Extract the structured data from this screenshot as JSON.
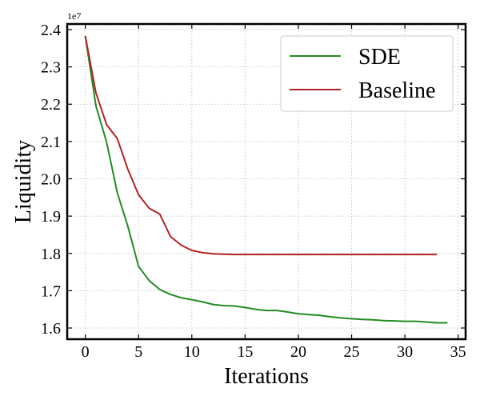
{
  "chart_data": {
    "type": "line",
    "title": "",
    "xlabel": "Iterations",
    "ylabel": "Liquidity",
    "y_offset_label": "1e7",
    "xlim": [
      -1.7,
      35.7
    ],
    "ylim": [
      1.57,
      2.415
    ],
    "x_ticks": [
      0,
      5,
      10,
      15,
      20,
      25,
      30,
      35
    ],
    "y_ticks": [
      1.6,
      1.7,
      1.8,
      1.9,
      2.0,
      2.1,
      2.2,
      2.3,
      2.4
    ],
    "x_tick_labels": [
      "0",
      "5",
      "10",
      "15",
      "20",
      "25",
      "30",
      "35"
    ],
    "y_tick_labels": [
      "1.6",
      "1.7",
      "1.8",
      "1.9",
      "2.0",
      "2.1",
      "2.2",
      "2.3",
      "2.4"
    ],
    "grid": true,
    "legend_position": "top-right",
    "series": [
      {
        "name": "SDE",
        "color": "#228b22",
        "x": [
          0,
          1,
          2,
          3,
          4,
          5,
          6,
          7,
          8,
          9,
          10,
          11,
          12,
          13,
          14,
          15,
          16,
          17,
          18,
          19,
          20,
          21,
          22,
          23,
          24,
          25,
          26,
          27,
          28,
          29,
          30,
          31,
          32,
          33,
          34
        ],
        "y": [
          2.383,
          2.195,
          2.098,
          1.963,
          1.872,
          1.765,
          1.727,
          1.703,
          1.69,
          1.681,
          1.676,
          1.67,
          1.663,
          1.66,
          1.659,
          1.655,
          1.65,
          1.647,
          1.647,
          1.643,
          1.638,
          1.636,
          1.634,
          1.63,
          1.627,
          1.625,
          1.623,
          1.622,
          1.62,
          1.619,
          1.618,
          1.618,
          1.616,
          1.614,
          1.614
        ]
      },
      {
        "name": "Baseline",
        "color": "#b22222",
        "x": [
          0,
          1,
          2,
          3,
          4,
          5,
          6,
          7,
          8,
          9,
          10,
          11,
          12,
          13,
          14,
          15,
          16,
          17,
          18,
          19,
          20,
          21,
          22,
          23,
          24,
          25,
          26,
          27,
          28,
          29,
          30,
          31,
          32,
          33
        ],
        "y": [
          2.383,
          2.23,
          2.145,
          2.108,
          2.025,
          1.957,
          1.921,
          1.905,
          1.845,
          1.822,
          1.808,
          1.802,
          1.799,
          1.798,
          1.797,
          1.797,
          1.797,
          1.797,
          1.797,
          1.797,
          1.797,
          1.797,
          1.797,
          1.797,
          1.797,
          1.797,
          1.797,
          1.797,
          1.797,
          1.797,
          1.797,
          1.797,
          1.797,
          1.797
        ]
      }
    ]
  }
}
